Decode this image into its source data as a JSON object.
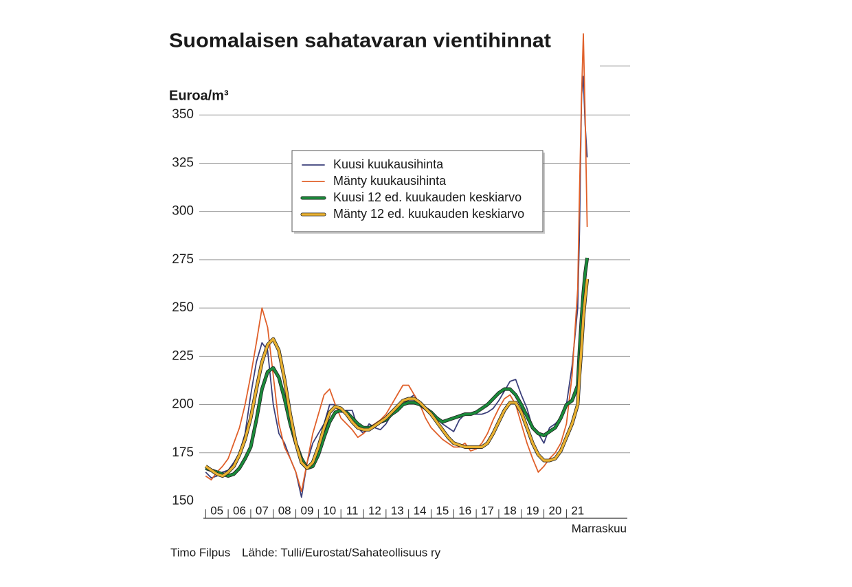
{
  "chart_data": {
    "type": "line",
    "title": "Suomalaisen sahatavaran vientihinnat",
    "y_label": "Euroa/m³",
    "x_note": "Marraskuu",
    "credit": "Timo Filpus",
    "source": "Lähde: Tulli/Eurostat/Sahateollisuus ry",
    "xlim": [
      2004.9,
      2023.7
    ],
    "ylim": [
      150,
      375
    ],
    "yticks": [
      150,
      175,
      200,
      225,
      250,
      275,
      300,
      325,
      350
    ],
    "xticks": [
      {
        "value": 2005,
        "label": "05"
      },
      {
        "value": 2006,
        "label": "06"
      },
      {
        "value": 2007,
        "label": "07"
      },
      {
        "value": 2008,
        "label": "08"
      },
      {
        "value": 2009,
        "label": "09"
      },
      {
        "value": 2010,
        "label": "10"
      },
      {
        "value": 2011,
        "label": "11"
      },
      {
        "value": 2012,
        "label": "12"
      },
      {
        "value": 2013,
        "label": "13"
      },
      {
        "value": 2014,
        "label": "14"
      },
      {
        "value": 2015,
        "label": "15"
      },
      {
        "value": 2016,
        "label": "16"
      },
      {
        "value": 2017,
        "label": "17"
      },
      {
        "value": 2018,
        "label": "18"
      },
      {
        "value": 2019,
        "label": "19"
      },
      {
        "value": 2020,
        "label": "20"
      },
      {
        "value": 2021,
        "label": "21"
      }
    ],
    "grid": true,
    "legend": "top-center",
    "x": [
      2005,
      2005.25,
      2005.5,
      2005.75,
      2006,
      2006.25,
      2006.5,
      2006.75,
      2007,
      2007.25,
      2007.5,
      2007.75,
      2008,
      2008.25,
      2008.5,
      2008.75,
      2009,
      2009.25,
      2009.5,
      2009.75,
      2010,
      2010.25,
      2010.5,
      2010.75,
      2011,
      2011.25,
      2011.5,
      2011.75,
      2012,
      2012.25,
      2012.5,
      2012.75,
      2013,
      2013.25,
      2013.5,
      2013.75,
      2014,
      2014.25,
      2014.5,
      2014.75,
      2015,
      2015.25,
      2015.5,
      2015.75,
      2016,
      2016.25,
      2016.5,
      2016.75,
      2017,
      2017.25,
      2017.5,
      2017.75,
      2018,
      2018.25,
      2018.5,
      2018.75,
      2019,
      2019.25,
      2019.5,
      2019.75,
      2020,
      2020.25,
      2020.5,
      2020.75,
      2021,
      2021.25,
      2021.5,
      2021.58,
      2021.67,
      2021.75,
      2021.83,
      2021.92
    ],
    "series": [
      {
        "name": "Kuusi kuukausihinta",
        "color": "#3b3f7a",
        "linewidth": 1.8,
        "values": [
          165,
          162,
          163,
          165,
          166,
          170,
          175,
          185,
          205,
          222,
          232,
          228,
          200,
          185,
          180,
          172,
          165,
          152,
          170,
          180,
          185,
          190,
          200,
          200,
          196,
          197,
          197,
          188,
          185,
          190,
          188,
          187,
          190,
          195,
          197,
          200,
          203,
          205,
          200,
          198,
          195,
          193,
          190,
          188,
          186,
          192,
          195,
          195,
          195,
          195,
          196,
          198,
          202,
          207,
          212,
          213,
          205,
          198,
          188,
          185,
          180,
          188,
          190,
          193,
          200,
          220,
          250,
          290,
          360,
          370,
          345,
          328
        ]
      },
      {
        "name": "Mänty kuukausihinta",
        "color": "#e0602a",
        "linewidth": 1.8,
        "values": [
          163,
          161,
          165,
          168,
          172,
          180,
          188,
          200,
          215,
          232,
          250,
          240,
          215,
          190,
          178,
          172,
          165,
          155,
          170,
          185,
          195,
          205,
          208,
          200,
          193,
          190,
          187,
          183,
          185,
          188,
          190,
          192,
          195,
          200,
          205,
          210,
          210,
          205,
          200,
          193,
          188,
          185,
          182,
          180,
          178,
          178,
          180,
          176,
          177,
          180,
          185,
          192,
          198,
          203,
          205,
          200,
          190,
          180,
          172,
          165,
          168,
          172,
          175,
          180,
          190,
          215,
          260,
          310,
          360,
          392,
          350,
          292
        ]
      },
      {
        "name": "Kuusi 12 ed. kuukauden keskiarvo",
        "color": "#1a8a3a",
        "linewidth": 3.5,
        "values": [
          167,
          166,
          165,
          164,
          163,
          164,
          167,
          172,
          178,
          192,
          208,
          217,
          219,
          214,
          203,
          190,
          180,
          172,
          167,
          168,
          174,
          183,
          191,
          196,
          197,
          196,
          193,
          190,
          188,
          188,
          189,
          191,
          192,
          195,
          197,
          200,
          201,
          201,
          200,
          198,
          196,
          193,
          191,
          192,
          193,
          194,
          195,
          195,
          196,
          198,
          200,
          203,
          206,
          208,
          208,
          205,
          200,
          194,
          188,
          185,
          184,
          186,
          188,
          193,
          200,
          202,
          210,
          228,
          245,
          258,
          268,
          276
        ]
      },
      {
        "name": "Mänty 12 ed. kuukauden keskiarvo",
        "color": "#e8b030",
        "linewidth": 3.5,
        "values": [
          168,
          166,
          164,
          163,
          165,
          168,
          174,
          182,
          193,
          208,
          222,
          231,
          234,
          228,
          213,
          195,
          180,
          170,
          167,
          170,
          178,
          188,
          196,
          199,
          198,
          195,
          191,
          188,
          187,
          187,
          189,
          191,
          193,
          196,
          199,
          202,
          203,
          203,
          201,
          198,
          195,
          191,
          187,
          183,
          180,
          179,
          178,
          178,
          178,
          178,
          180,
          185,
          191,
          197,
          201,
          201,
          196,
          188,
          180,
          174,
          171,
          171,
          172,
          176,
          183,
          190,
          200,
          215,
          230,
          245,
          255,
          265
        ]
      }
    ]
  }
}
